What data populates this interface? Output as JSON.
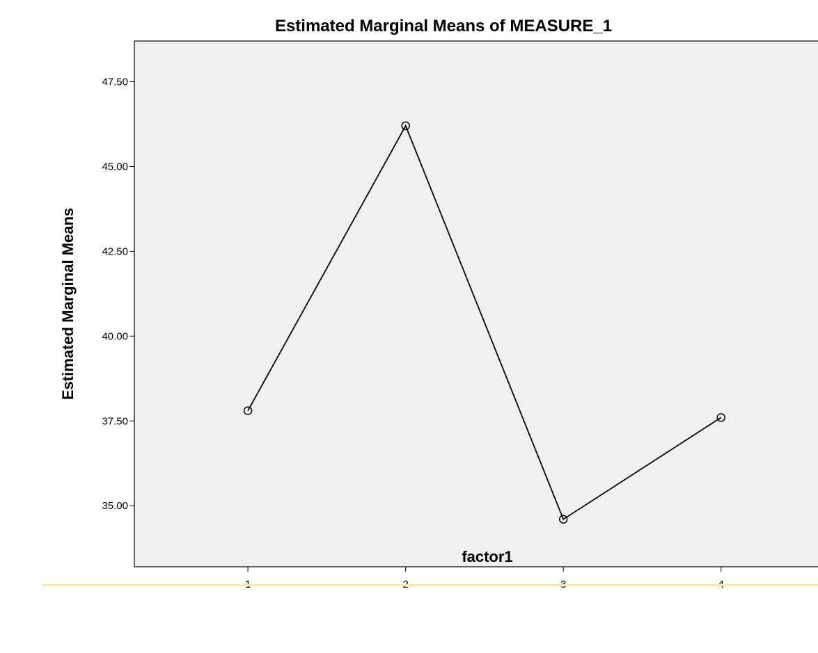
{
  "chart_data": {
    "type": "line",
    "title": "Estimated Marginal Means of MEASURE_1",
    "xlabel": "factor1",
    "ylabel": "Estimated Marginal Means",
    "categories": [
      "1",
      "2",
      "3",
      "4"
    ],
    "values": [
      37.8,
      46.2,
      34.6,
      37.6
    ],
    "yticks": [
      "35.00",
      "37.50",
      "40.00",
      "42.50",
      "45.00",
      "47.50"
    ],
    "ylim": [
      33.2,
      48.7
    ],
    "xlim": [
      0.28,
      4.65
    ],
    "grid": false,
    "plot_background": "#f0f0f0",
    "line_color": "#000000",
    "marker": "circle-open"
  },
  "footer": {
    "rule_color": "#fbe9a2"
  }
}
